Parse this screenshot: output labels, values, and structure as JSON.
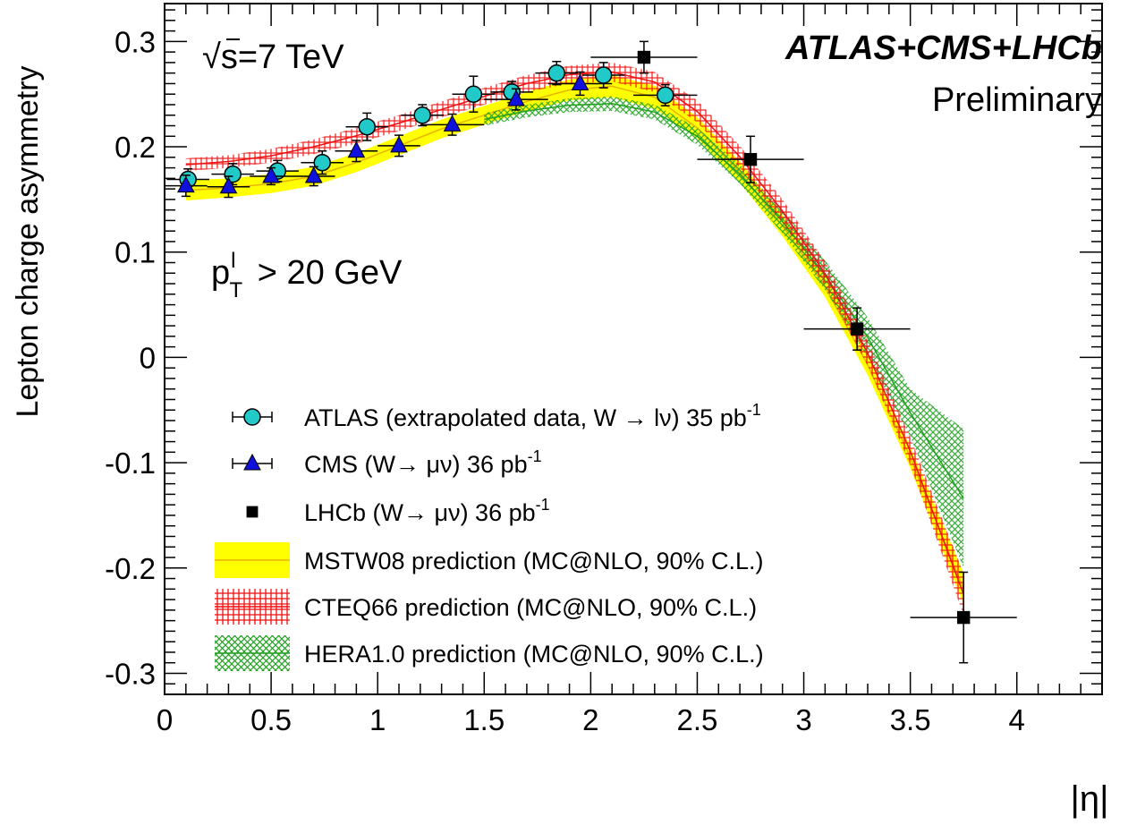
{
  "chart_data": {
    "type": "scatter",
    "title": "",
    "xlabel": "|η|",
    "ylabel": "Lepton charge asymmetry",
    "xlim": [
      0,
      4.4
    ],
    "ylim": [
      -0.32,
      0.336
    ],
    "xticks": [
      "0",
      "0.5",
      "1",
      "1.5",
      "2",
      "2.5",
      "3",
      "3.5",
      "4"
    ],
    "yticks": [
      "-0.3",
      "-0.2",
      "-0.1",
      "0",
      "0.1",
      "0.2",
      "0.3"
    ],
    "grid": false,
    "legend_position": "bottom-center",
    "annotations": {
      "energy_prefix": "√",
      "energy_rest": "s=7 TeV",
      "experiments": "ATLAS+CMS+LHCb",
      "status": "Preliminary",
      "cut_p": "p",
      "cut_sup": "l",
      "cut_sub": "T",
      "cut_rest": " > 20 GeV"
    },
    "series": [
      {
        "name": "ATLAS (extrapolated data, W → lν) 35 pb",
        "name_sup": "-1",
        "marker": "circle",
        "color": "#22c9c9",
        "x": [
          0.11,
          0.32,
          0.53,
          0.74,
          0.95,
          1.21,
          1.45,
          1.63,
          1.84,
          2.06,
          2.35
        ],
        "y": [
          0.169,
          0.174,
          0.177,
          0.185,
          0.219,
          0.23,
          0.25,
          0.252,
          0.27,
          0.268,
          0.249
        ],
        "xerr": [
          0.1,
          0.1,
          0.1,
          0.1,
          0.1,
          0.1,
          0.1,
          0.1,
          0.1,
          0.1,
          0.15
        ],
        "yerr": [
          0.01,
          0.01,
          0.01,
          0.011,
          0.013,
          0.01,
          0.017,
          0.01,
          0.011,
          0.012,
          0.01
        ]
      },
      {
        "name": "CMS (W→ μν) 36 pb",
        "name_sup": "-1",
        "marker": "triangle",
        "color": "#1111dd",
        "x": [
          0.1,
          0.3,
          0.5,
          0.7,
          0.9,
          1.1,
          1.35,
          1.65,
          1.95
        ],
        "y": [
          0.163,
          0.162,
          0.172,
          0.172,
          0.196,
          0.201,
          0.221,
          0.245,
          0.26
        ],
        "xerr": [
          0.1,
          0.1,
          0.1,
          0.1,
          0.1,
          0.1,
          0.15,
          0.15,
          0.15
        ],
        "yerr": [
          0.01,
          0.01,
          0.008,
          0.009,
          0.01,
          0.01,
          0.01,
          0.01,
          0.011
        ]
      },
      {
        "name": "LHCb (W→ μν) 36 pb",
        "name_sup": "-1",
        "marker": "square",
        "color": "#000000",
        "x": [
          2.25,
          2.75,
          3.25,
          3.75
        ],
        "y": [
          0.285,
          0.188,
          0.027,
          -0.247
        ],
        "xerr": [
          0.25,
          0.25,
          0.25,
          0.25
        ],
        "yerr": [
          0.015,
          0.022,
          0.02,
          0.043
        ]
      }
    ],
    "bands": [
      {
        "name": "MSTW08 prediction (MC@NLO, 90% C.L.)",
        "style": "solid",
        "color": "#ffff00",
        "line": "#e8b400",
        "x": [
          0.1,
          0.3,
          0.5,
          0.7,
          0.9,
          1.1,
          1.3,
          1.5,
          1.7,
          1.9,
          2.1,
          2.3,
          2.5,
          2.7,
          2.9,
          3.1,
          3.3,
          3.5,
          3.75
        ],
        "lo": [
          0.149,
          0.152,
          0.156,
          0.163,
          0.176,
          0.192,
          0.208,
          0.221,
          0.234,
          0.244,
          0.247,
          0.236,
          0.208,
          0.166,
          0.115,
          0.057,
          -0.017,
          -0.105,
          -0.235
        ],
        "hi": [
          0.168,
          0.17,
          0.174,
          0.181,
          0.194,
          0.21,
          0.226,
          0.239,
          0.252,
          0.264,
          0.268,
          0.258,
          0.228,
          0.186,
          0.135,
          0.077,
          0.003,
          -0.085,
          -0.205
        ]
      },
      {
        "name": "CTEQ66 prediction (MC@NLO, 90% C.L.)",
        "style": "grid",
        "color": "#ee1111",
        "line": "#ee1111",
        "x": [
          0.1,
          0.3,
          0.5,
          0.7,
          0.9,
          1.1,
          1.3,
          1.5,
          1.7,
          1.9,
          2.1,
          2.3,
          2.5,
          2.7,
          2.9,
          3.1,
          3.3,
          3.5,
          3.75
        ],
        "lo": [
          0.177,
          0.18,
          0.185,
          0.193,
          0.203,
          0.215,
          0.228,
          0.24,
          0.252,
          0.26,
          0.262,
          0.252,
          0.223,
          0.18,
          0.128,
          0.068,
          -0.008,
          -0.102,
          -0.245
        ],
        "hi": [
          0.189,
          0.192,
          0.198,
          0.207,
          0.218,
          0.23,
          0.243,
          0.256,
          0.268,
          0.277,
          0.28,
          0.271,
          0.244,
          0.201,
          0.15,
          0.091,
          0.016,
          -0.076,
          -0.205
        ]
      },
      {
        "name": "HERA1.0 prediction (MC@NLO, 90% C.L.)",
        "style": "cross",
        "color": "#22a022",
        "line": "#22a022",
        "x": [
          1.5,
          1.7,
          1.9,
          2.1,
          2.3,
          2.5,
          2.7,
          2.9,
          3.1,
          3.3,
          3.5,
          3.75
        ],
        "lo": [
          0.22,
          0.228,
          0.233,
          0.234,
          0.226,
          0.202,
          0.165,
          0.118,
          0.064,
          0.0,
          -0.075,
          -0.2
        ],
        "hi": [
          0.232,
          0.24,
          0.246,
          0.248,
          0.24,
          0.218,
          0.183,
          0.14,
          0.092,
          0.038,
          -0.03,
          -0.068
        ]
      }
    ]
  }
}
